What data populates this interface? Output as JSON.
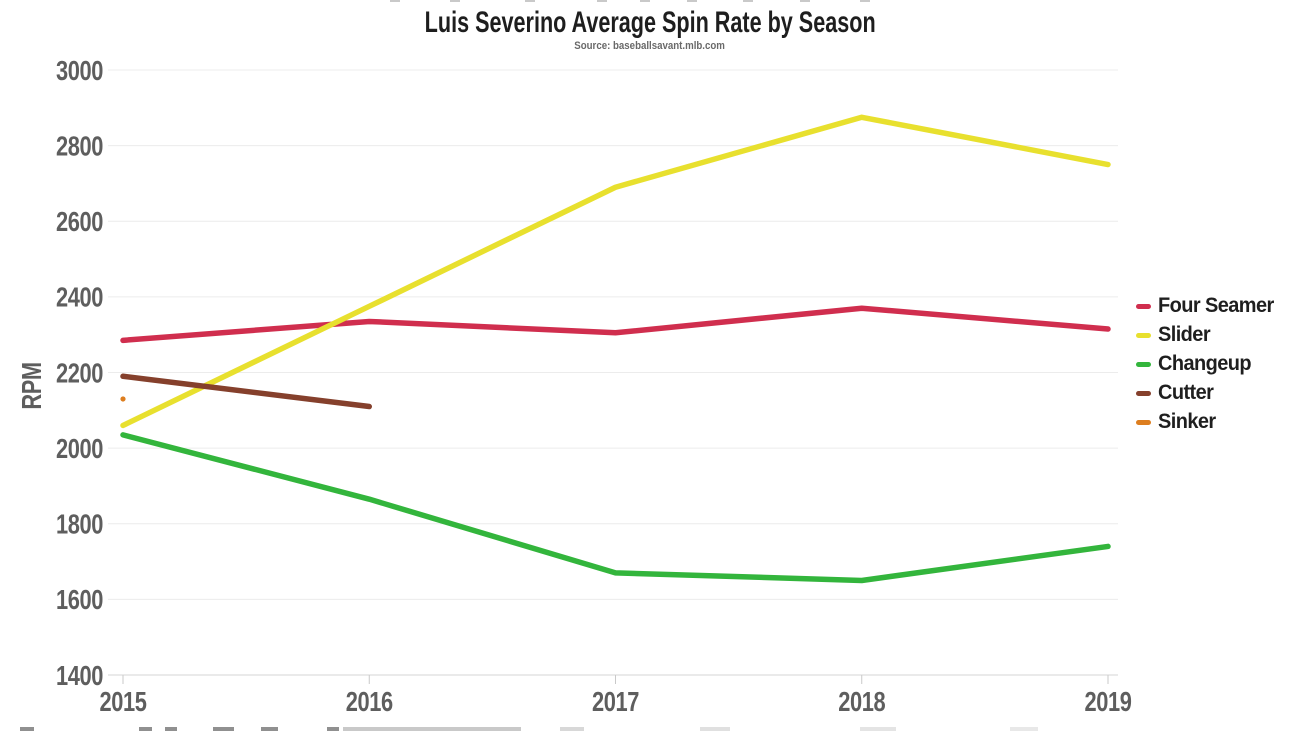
{
  "page": {
    "title": "Luis Severino Average Spin Rate by Season",
    "subtitle": "Source: baseballsavant.mlb.com"
  },
  "chart_data": {
    "type": "line",
    "title": "Luis Severino Average Spin Rate by Season",
    "subtitle": "Source: baseballsavant.mlb.com",
    "xlabel": "",
    "ylabel": "RPM",
    "x": [
      "2015",
      "2016",
      "2017",
      "2018",
      "2019"
    ],
    "ylim": [
      1400,
      3000
    ],
    "ytick_step": 200,
    "y_ticks": [
      1400,
      1600,
      1800,
      2000,
      2200,
      2400,
      2600,
      2800,
      3000
    ],
    "grid": true,
    "legend_position": "right",
    "series": [
      {
        "name": "Four Seamer",
        "color": "#d02e4e",
        "values": [
          2285,
          2335,
          2305,
          2370,
          2315
        ]
      },
      {
        "name": "Slider",
        "color": "#e8e02e",
        "values": [
          2060,
          2375,
          2690,
          2875,
          2750
        ]
      },
      {
        "name": "Changeup",
        "color": "#33b53c",
        "values": [
          2035,
          1865,
          1670,
          1650,
          1740
        ]
      },
      {
        "name": "Cutter",
        "color": "#85402c",
        "values": [
          2190,
          2110,
          null,
          null,
          null
        ]
      },
      {
        "name": "Sinker",
        "color": "#dd7e1f",
        "values": [
          2130,
          null,
          null,
          null,
          null
        ]
      }
    ],
    "style": {
      "grid_color": "#ececec",
      "axis_color": "#d6d6d6",
      "tick_color": "#c9c9c9",
      "label_color": "#5e5e5e",
      "line_width": 5.5
    }
  }
}
